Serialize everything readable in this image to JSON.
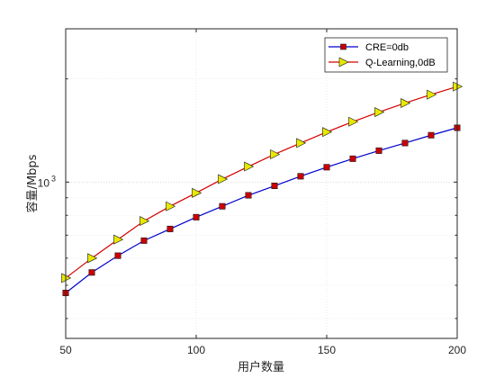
{
  "chart_data": {
    "type": "line",
    "title": "",
    "xlabel": "用户数量",
    "ylabel": "容量/Mbps",
    "x": [
      50,
      60,
      70,
      80,
      90,
      100,
      110,
      120,
      130,
      140,
      150,
      160,
      170,
      180,
      190,
      200
    ],
    "xlim": [
      50,
      200
    ],
    "xticks": [
      "50",
      "100",
      "150",
      "200"
    ],
    "yscale": "log",
    "ylim": [
      350,
      2800
    ],
    "yticks": [
      {
        "base": "10",
        "exp": "3",
        "value": 1000
      }
    ],
    "grid": true,
    "legend_position": "top-right",
    "series": [
      {
        "name": "CRE=0db",
        "color": "#0000cc",
        "marker": "square",
        "marker_color": "#cc0000",
        "values": [
          475,
          545,
          610,
          675,
          730,
          790,
          850,
          915,
          975,
          1040,
          1105,
          1170,
          1235,
          1300,
          1370,
          1440
        ]
      },
      {
        "name": "Q-Learning,0dB",
        "color": "#d40000",
        "marker": "triangle-right",
        "marker_color": "#e8e800",
        "values": [
          525,
          600,
          680,
          770,
          850,
          930,
          1020,
          1110,
          1205,
          1300,
          1400,
          1500,
          1600,
          1700,
          1800,
          1900
        ]
      }
    ]
  }
}
